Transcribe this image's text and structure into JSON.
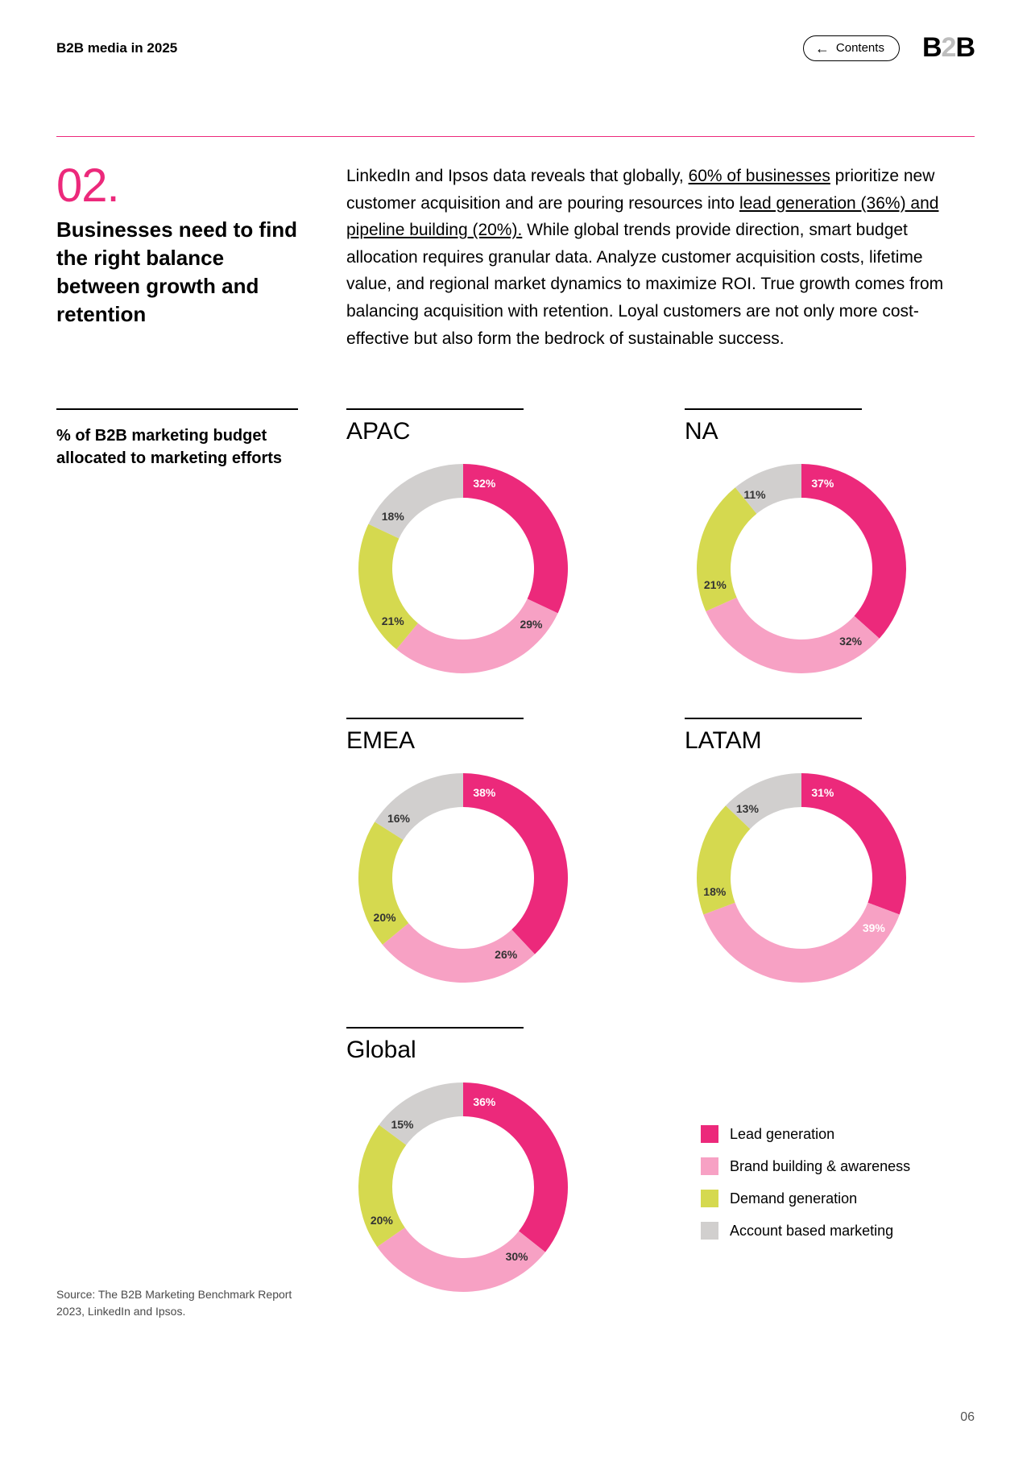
{
  "header": {
    "title": "B2B media in 2025",
    "contents_label": "Contents",
    "logo_prefix": "B",
    "logo_mid": "2",
    "logo_suffix": "B"
  },
  "section": {
    "number": "02.",
    "heading": "Businesses need to find the right balance between growth and retention"
  },
  "body": {
    "pre": "LinkedIn and Ipsos data reveals that globally, ",
    "u1": "60% of businesses",
    "mid1": " prioritize new customer acquisition and are pouring resources into ",
    "u2": "lead generation (36%) and pipeline building (20%).",
    "post": " While global trends provide direction, smart budget allocation requires granular data. Analyze customer acquisition costs, lifetime value, and regional market dynamics to maximize ROI. True growth comes from balancing acquisition with retention. Loyal customers are not only more cost-effective but also form the bedrock of sustainable success."
  },
  "chart_caption": "% of B2B marketing budget allocated to marketing efforts",
  "source": "Source: The B2B Marketing Benchmark Report 2023, LinkedIn and Ipsos.",
  "page_number": "06",
  "colors": {
    "lead": "#ec297b",
    "brand": "#f7a1c4",
    "demand": "#d5d94f",
    "abm": "#d1cfce"
  },
  "legend": [
    {
      "key": "lead",
      "label": "Lead generation"
    },
    {
      "key": "brand",
      "label": "Brand building & awareness"
    },
    {
      "key": "demand",
      "label": "Demand generation"
    },
    {
      "key": "abm",
      "label": "Account based marketing"
    }
  ],
  "donut": {
    "outer_r": 130,
    "inner_r": 88,
    "start_angle_deg": -90,
    "label_r": 109
  },
  "charts": [
    {
      "title": "APAC",
      "slices": [
        {
          "key": "lead",
          "value": 32,
          "label": "32%",
          "label_color": "white"
        },
        {
          "key": "brand",
          "value": 29,
          "label": "29%",
          "label_color": "dark"
        },
        {
          "key": "demand",
          "value": 21,
          "label": "21%",
          "label_color": "dark"
        },
        {
          "key": "abm",
          "value": 18,
          "label": "18%",
          "label_color": "dark"
        }
      ]
    },
    {
      "title": "NA",
      "slices": [
        {
          "key": "lead",
          "value": 37,
          "label": "37%",
          "label_color": "white"
        },
        {
          "key": "brand",
          "value": 32,
          "label": "32%",
          "label_color": "dark"
        },
        {
          "key": "demand",
          "value": 21,
          "label": "21%",
          "label_color": "dark"
        },
        {
          "key": "abm",
          "value": 11,
          "label": "11%",
          "label_color": "dark"
        }
      ]
    },
    {
      "title": "EMEA",
      "slices": [
        {
          "key": "lead",
          "value": 38,
          "label": "38%",
          "label_color": "white"
        },
        {
          "key": "brand",
          "value": 26,
          "label": "26%",
          "label_color": "dark"
        },
        {
          "key": "demand",
          "value": 20,
          "label": "20%",
          "label_color": "dark"
        },
        {
          "key": "abm",
          "value": 16,
          "label": "16%",
          "label_color": "dark"
        }
      ]
    },
    {
      "title": "LATAM",
      "slices": [
        {
          "key": "lead",
          "value": 31,
          "label": "31%",
          "label_color": "white"
        },
        {
          "key": "brand",
          "value": 39,
          "label": "39%",
          "label_color": "white"
        },
        {
          "key": "demand",
          "value": 18,
          "label": "18%",
          "label_color": "dark"
        },
        {
          "key": "abm",
          "value": 13,
          "label": "13%",
          "label_color": "dark"
        }
      ]
    },
    {
      "title": "Global",
      "slices": [
        {
          "key": "lead",
          "value": 36,
          "label": "36%",
          "label_color": "white"
        },
        {
          "key": "brand",
          "value": 30,
          "label": "30%",
          "label_color": "dark"
        },
        {
          "key": "demand",
          "value": 20,
          "label": "20%",
          "label_color": "dark"
        },
        {
          "key": "abm",
          "value": 15,
          "label": "15%",
          "label_color": "dark"
        }
      ]
    }
  ]
}
